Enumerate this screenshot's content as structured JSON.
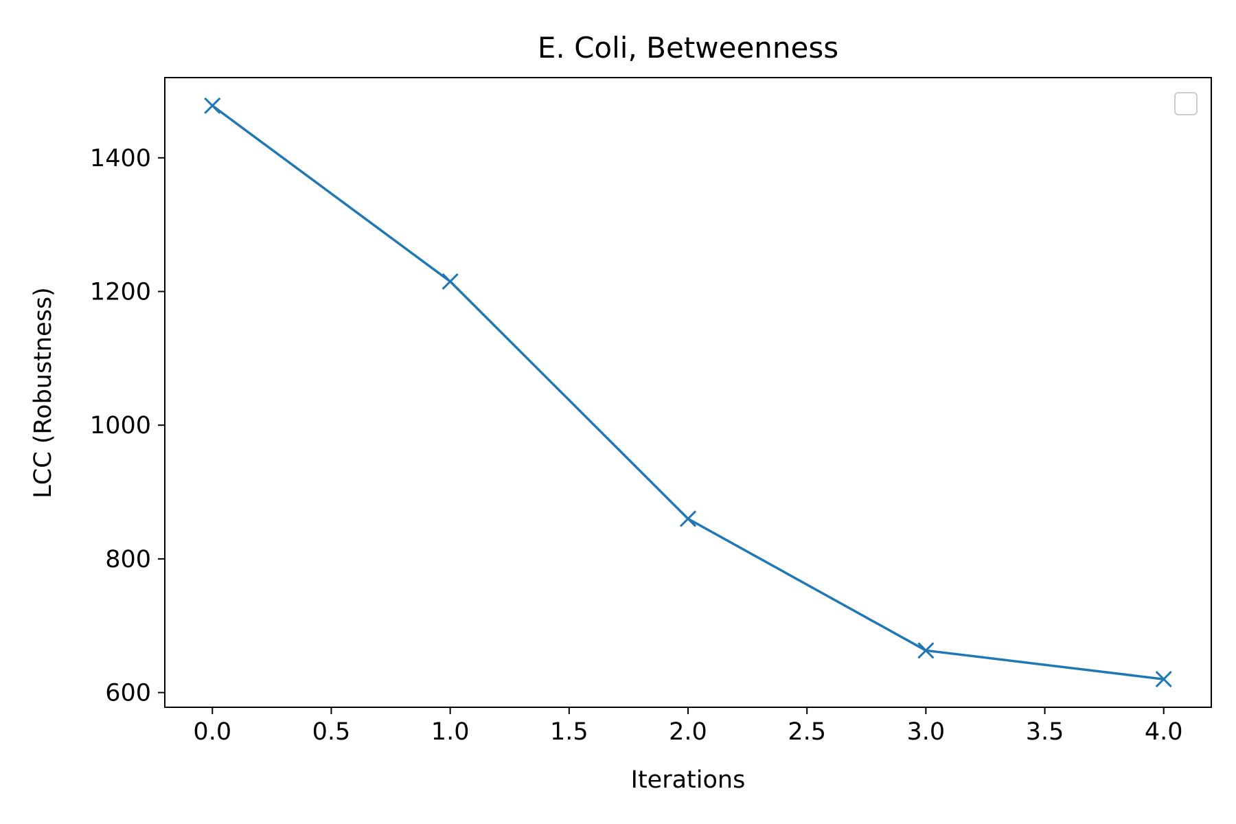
{
  "chart_data": {
    "type": "line",
    "title": "E. Coli, Betweenness",
    "xlabel": "Iterations",
    "ylabel": "LCC (Robustness)",
    "x": [
      0,
      1,
      2,
      3,
      4
    ],
    "series": [
      {
        "values": [
          1478,
          1215,
          860,
          663,
          620
        ],
        "color": "#1f77b4",
        "marker": "x"
      }
    ],
    "xlim": [
      -0.2,
      4.2
    ],
    "ylim": [
      578,
      1520
    ],
    "xticks": [
      0.0,
      0.5,
      1.0,
      1.5,
      2.0,
      2.5,
      3.0,
      3.5,
      4.0
    ],
    "xtick_labels": [
      "0.0",
      "0.5",
      "1.0",
      "1.5",
      "2.0",
      "2.5",
      "3.0",
      "3.5",
      "4.0"
    ],
    "yticks": [
      600,
      800,
      1000,
      1200,
      1400
    ],
    "ytick_labels": [
      "600",
      "800",
      "1000",
      "1200",
      "1400"
    ],
    "grid": false,
    "legend": {
      "placement": "top-right",
      "entries": []
    }
  }
}
